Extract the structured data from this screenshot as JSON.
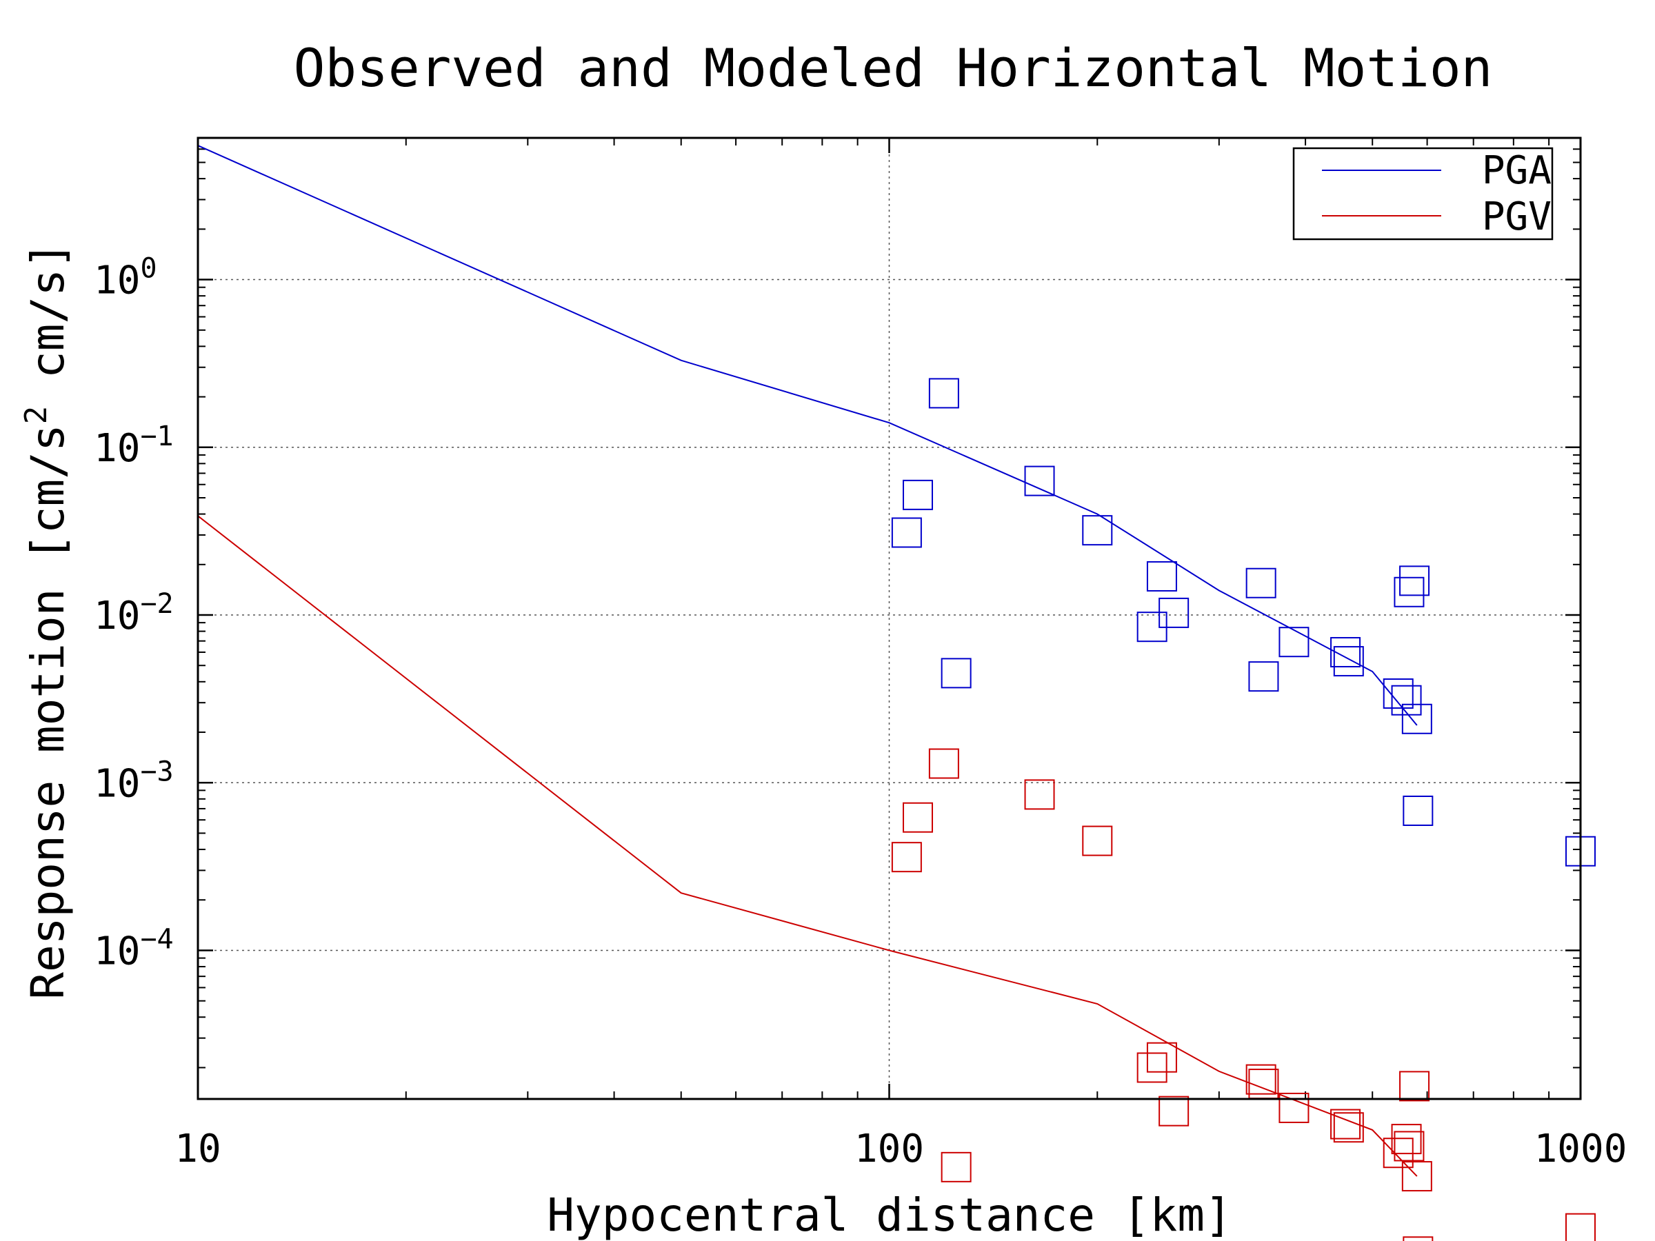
{
  "chart_data": {
    "type": "scatter",
    "title": "Observed and Modeled Horizontal Motion",
    "xlabel": "Hypocentral distance [km]",
    "ylabel": {
      "prefix": "Response motion  [cm/s",
      "sup": "2",
      "suffix": "  cm/s]"
    },
    "x_scale": "log",
    "y_scale": "log",
    "xlim": [
      10,
      1000
    ],
    "ylim": [
      1.3e-05,
      7.0
    ],
    "x_ticks": [
      {
        "value": 10,
        "label": "10"
      },
      {
        "value": 100,
        "label": "100"
      },
      {
        "value": 1000,
        "label": "1000"
      }
    ],
    "y_ticks": [
      {
        "value": 1,
        "base": "10",
        "exp": "0"
      },
      {
        "value": 0.1,
        "base": "10",
        "exp": "−1"
      },
      {
        "value": 0.01,
        "base": "10",
        "exp": "−2"
      },
      {
        "value": 0.001,
        "base": "10",
        "exp": "−3"
      },
      {
        "value": 0.0001,
        "base": "10",
        "exp": "−4"
      }
    ],
    "grid": "dotted",
    "legend_position": "top-right",
    "series": [
      {
        "name": "PGA",
        "color": "#0000cc",
        "model_line": [
          [
            10,
            6.3
          ],
          [
            50,
            0.33
          ],
          [
            100,
            0.14
          ],
          [
            200,
            0.04
          ],
          [
            300,
            0.014
          ],
          [
            500,
            0.0046
          ],
          [
            580,
            0.0022
          ]
        ],
        "observed": [
          [
            120,
            0.21
          ],
          [
            110,
            0.052
          ],
          [
            106,
            0.031
          ],
          [
            125,
            0.0045
          ],
          [
            165,
            0.063
          ],
          [
            200,
            0.032
          ],
          [
            248,
            0.017
          ],
          [
            240,
            0.0085
          ],
          [
            258,
            0.0103
          ],
          [
            345,
            0.0155
          ],
          [
            348,
            0.0043
          ],
          [
            385,
            0.0069
          ],
          [
            457,
            0.006
          ],
          [
            462,
            0.0053
          ],
          [
            545,
            0.0034
          ],
          [
            560,
            0.0031
          ],
          [
            565,
            0.0137
          ],
          [
            575,
            0.016
          ],
          [
            580,
            0.0024
          ],
          [
            582,
            0.00068
          ],
          [
            1000,
            0.00039
          ]
        ]
      },
      {
        "name": "PGV",
        "color": "#cc0000",
        "model_line": [
          [
            10,
            0.039
          ],
          [
            50,
            0.00022
          ],
          [
            100,
            0.0001
          ],
          [
            200,
            4.8e-05
          ],
          [
            300,
            1.9e-05
          ],
          [
            500,
            8.5e-06
          ],
          [
            580,
            4.5e-06
          ]
        ],
        "observed": [
          [
            120,
            0.0013
          ],
          [
            110,
            0.00062
          ],
          [
            106,
            0.00036
          ],
          [
            125,
            5.1e-06
          ],
          [
            165,
            0.00085
          ],
          [
            200,
            0.00045
          ],
          [
            248,
            2.3e-05
          ],
          [
            240,
            2e-05
          ],
          [
            258,
            1.1e-05
          ],
          [
            345,
            1.7e-05
          ],
          [
            348,
            1.6e-05
          ],
          [
            385,
            1.15e-05
          ],
          [
            457,
            9.2e-06
          ],
          [
            462,
            8.8e-06
          ],
          [
            545,
            6.2e-06
          ],
          [
            560,
            7.5e-06
          ],
          [
            565,
            6.8e-06
          ],
          [
            575,
            1.55e-05
          ],
          [
            580,
            4.5e-06
          ],
          [
            582,
            1.6e-06
          ],
          [
            1000,
            2.2e-06
          ]
        ]
      }
    ]
  }
}
